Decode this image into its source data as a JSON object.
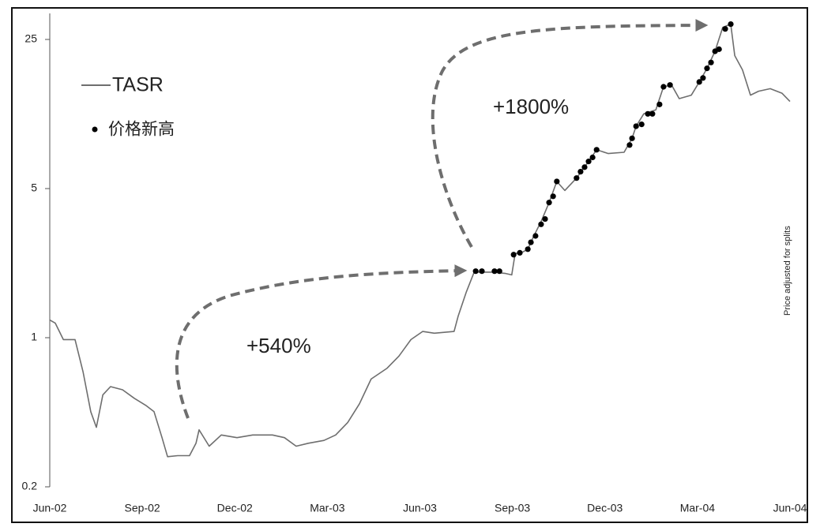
{
  "chart_data": {
    "type": "line",
    "log_y": true,
    "xlim": [
      0,
      24
    ],
    "xticks": [
      {
        "value": 0,
        "label": "Jun-02"
      },
      {
        "value": 3,
        "label": "Sep-02"
      },
      {
        "value": 6,
        "label": "Dec-02"
      },
      {
        "value": 9,
        "label": "Mar-03"
      },
      {
        "value": 12,
        "label": "Jun-03"
      },
      {
        "value": 15,
        "label": "Sep-03"
      },
      {
        "value": 18,
        "label": "Dec-03"
      },
      {
        "value": 21,
        "label": "Mar-04"
      },
      {
        "value": 24,
        "label": "Jun-04"
      }
    ],
    "ylim": [
      0.2,
      33
    ],
    "yticks": [
      0.2,
      1,
      5,
      25
    ],
    "annotations": [
      "+540%",
      "+1800%",
      "Price adjusted for splits"
    ],
    "series": [
      {
        "name": "TASR",
        "color": "#6e6e6e",
        "x": [
          0,
          0.18,
          0.44,
          0.82,
          1.08,
          1.33,
          1.51,
          1.72,
          1.97,
          2.36,
          2.74,
          3.13,
          3.38,
          3.64,
          3.82,
          4.15,
          4.53,
          4.74,
          4.84,
          5.17,
          5.56,
          6.07,
          6.58,
          7.22,
          7.61,
          7.99,
          8.38,
          8.89,
          9.27,
          9.66,
          10.04,
          10.42,
          10.94,
          11.32,
          11.71,
          12.09,
          12.47,
          13.11,
          13.24,
          13.5,
          13.76,
          14.14,
          14.4,
          14.78,
          14.98,
          15.09,
          15.29,
          15.5,
          15.68,
          15.93,
          16.19,
          16.44,
          16.7,
          17.08,
          17.47,
          17.73,
          18.11,
          18.62,
          18.88,
          19.01,
          19.26,
          19.65,
          19.9,
          20.16,
          20.41,
          20.8,
          21.06,
          21.31,
          21.57,
          21.82,
          22.08,
          22.21,
          22.46,
          22.72,
          22.98,
          23.36,
          23.74,
          24
        ],
        "values": [
          1.21,
          1.17,
          0.98,
          0.98,
          0.69,
          0.45,
          0.38,
          0.54,
          0.59,
          0.57,
          0.52,
          0.48,
          0.45,
          0.34,
          0.277,
          0.28,
          0.28,
          0.32,
          0.37,
          0.31,
          0.35,
          0.34,
          0.35,
          0.35,
          0.34,
          0.31,
          0.32,
          0.33,
          0.35,
          0.4,
          0.49,
          0.64,
          0.72,
          0.82,
          0.98,
          1.07,
          1.05,
          1.07,
          1.26,
          1.63,
          2.03,
          2.03,
          2.03,
          2.0,
          1.97,
          2.48,
          2.5,
          2.6,
          2.97,
          3.5,
          4.3,
          5.4,
          4.9,
          5.6,
          6.7,
          7.6,
          7.3,
          7.4,
          8.6,
          9.8,
          11.2,
          11.7,
          15.0,
          15.3,
          13.2,
          13.7,
          15.8,
          18.3,
          22.0,
          28.5,
          29.5,
          21.0,
          18.0,
          13.7,
          14.3,
          14.7,
          14.0,
          12.8
        ]
      },
      {
        "name": "价格新高",
        "type": "scatter",
        "color": "#000000",
        "x": [
          13.81,
          14.01,
          14.42,
          14.58,
          15.04,
          15.24,
          15.5,
          15.6,
          15.75,
          15.93,
          16.06,
          16.19,
          16.32,
          16.44,
          17.08,
          17.21,
          17.34,
          17.47,
          17.6,
          17.73,
          18.8,
          18.88,
          19.01,
          19.19,
          19.39,
          19.54,
          19.77,
          19.9,
          20.11,
          21.06,
          21.18,
          21.31,
          21.44,
          21.57,
          21.7,
          21.9,
          22.08
        ],
        "values": [
          2.05,
          2.05,
          2.05,
          2.05,
          2.45,
          2.5,
          2.6,
          2.8,
          3.0,
          3.4,
          3.6,
          4.3,
          4.6,
          5.4,
          5.6,
          6.0,
          6.3,
          6.7,
          7.0,
          7.6,
          8.0,
          8.6,
          9.8,
          10.0,
          11.2,
          11.2,
          12.4,
          15.0,
          15.3,
          15.8,
          16.5,
          18.3,
          19.5,
          22.0,
          22.5,
          28.0,
          29.5
        ]
      }
    ]
  }
}
